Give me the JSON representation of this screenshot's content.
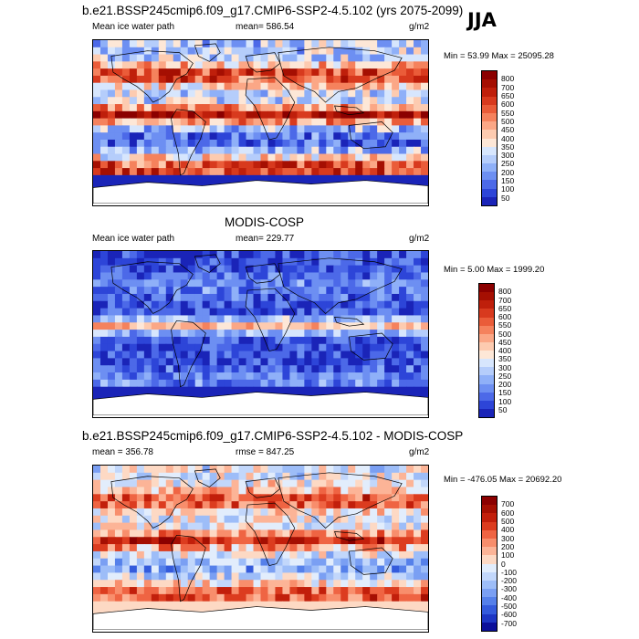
{
  "season": "JJA",
  "colors": {
    "positive_palette": [
      "#ffffff",
      "#d6e6ff",
      "#b2cdff",
      "#8daeff",
      "#6d8fff",
      "#4f6dff",
      "#3a4ff0",
      "#2d38d6",
      "#1d1fb2",
      "#0a0a8c",
      "#00006b"
    ],
    "warm_palette": [
      "#fde8d8",
      "#fbccb0",
      "#f8a98a",
      "#f28a68",
      "#ea6a48",
      "#de4a2e",
      "#cc2d18",
      "#b0180a",
      "#9a0b03",
      "#8b0000"
    ],
    "land_edge": "#000000"
  },
  "chart_data": [
    {
      "type": "heatmap",
      "name": "model",
      "title": "b.e21.BSSP245cmip6.f09_g17.CMIP6-SSP2-4.5.102 (yrs 2075-2099)",
      "left_label": "Mean ice water path",
      "mean_label": "mean= 586.54",
      "units": "g/m2",
      "minmax": "Min =  53.99 Max = 25095.28",
      "levels": [
        "800",
        "700",
        "650",
        "600",
        "550",
        "500",
        "450",
        "400",
        "350",
        "300",
        "250",
        "200",
        "150",
        "100",
        "50"
      ],
      "colors": [
        "#8b0000",
        "#a50f02",
        "#bf1f0b",
        "#d83a1e",
        "#ea5c39",
        "#f5825d",
        "#fba786",
        "#fdcbb0",
        "#fde7d7",
        "#d7e6fd",
        "#b5cdfb",
        "#8fb0f8",
        "#6d8ff2",
        "#4c69e8",
        "#2d45d8",
        "#1a24b8"
      ]
    },
    {
      "type": "heatmap",
      "name": "obs",
      "title": "MODIS-COSP",
      "left_label": "Mean ice water path",
      "mean_label": "mean= 229.77",
      "units": "g/m2",
      "minmax": "Min =   5.00 Max = 1999.20",
      "levels": [
        "800",
        "700",
        "650",
        "600",
        "550",
        "500",
        "450",
        "400",
        "350",
        "300",
        "250",
        "200",
        "150",
        "100",
        "50"
      ],
      "colors": [
        "#8b0000",
        "#a50f02",
        "#bf1f0b",
        "#d83a1e",
        "#ea5c39",
        "#f5825d",
        "#fba786",
        "#fdcbb0",
        "#fde7d7",
        "#d7e6fd",
        "#b5cdfb",
        "#8fb0f8",
        "#6d8ff2",
        "#4c69e8",
        "#2d45d8",
        "#1a24b8"
      ]
    },
    {
      "type": "heatmap",
      "name": "diff",
      "title": "b.e21.BSSP245cmip6.f09_g17.CMIP6-SSP2-4.5.102 - MODIS-COSP",
      "left_label": "mean = 356.78",
      "mean_label": "rmse = 847.25",
      "units": "g/m2",
      "minmax": "Min = -476.05 Max = 20692.20",
      "levels": [
        "700",
        "600",
        "500",
        "400",
        "300",
        "200",
        "100",
        "0",
        "-100",
        "-200",
        "-300",
        "-400",
        "-500",
        "-600",
        "-700"
      ],
      "colors": [
        "#8b0000",
        "#a50f02",
        "#c21f0b",
        "#dc3c1f",
        "#ef6443",
        "#f88e6c",
        "#fcb497",
        "#fdd9c4",
        "#e2edfc",
        "#c2d7fb",
        "#9dbdf8",
        "#7a9ff3",
        "#5580ea",
        "#345bdc",
        "#1d36c4",
        "#0b0f9a"
      ]
    }
  ]
}
